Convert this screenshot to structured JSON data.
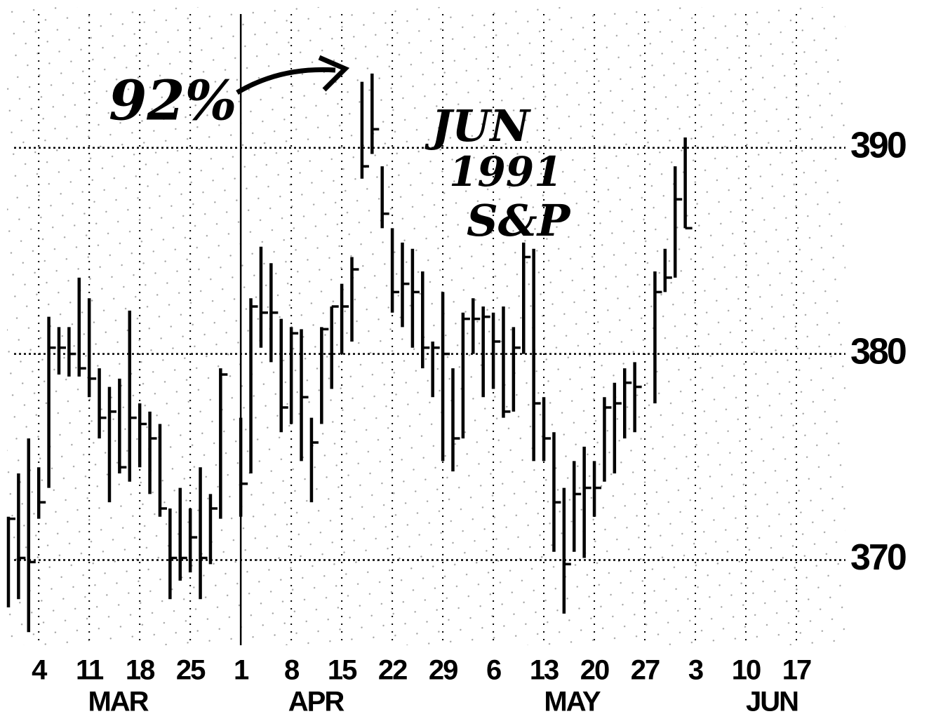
{
  "chart_data": {
    "type": "ohlc",
    "color": "#000000",
    "annotations": [
      "92%",
      "JUN",
      "1991",
      "S&P"
    ],
    "month_labels": [
      "MAR",
      "APR",
      "MAY",
      "JUN"
    ],
    "x": [
      "1991-02-27",
      "1991-02-28",
      "1991-03-01",
      "1991-03-04",
      "1991-03-05",
      "1991-03-06",
      "1991-03-07",
      "1991-03-08",
      "1991-03-11",
      "1991-03-12",
      "1991-03-13",
      "1991-03-14",
      "1991-03-15",
      "1991-03-18",
      "1991-03-19",
      "1991-03-20",
      "1991-03-21",
      "1991-03-22",
      "1991-03-25",
      "1991-03-26",
      "1991-03-27",
      "1991-03-28",
      "1991-04-01",
      "1991-04-02",
      "1991-04-03",
      "1991-04-04",
      "1991-04-05",
      "1991-04-08",
      "1991-04-09",
      "1991-04-10",
      "1991-04-11",
      "1991-04-12",
      "1991-04-15",
      "1991-04-16",
      "1991-04-17",
      "1991-04-18",
      "1991-04-19",
      "1991-04-22",
      "1991-04-23",
      "1991-04-24",
      "1991-04-25",
      "1991-04-26",
      "1991-04-29",
      "1991-04-30",
      "1991-05-01",
      "1991-05-02",
      "1991-05-03",
      "1991-05-06",
      "1991-05-07",
      "1991-05-08",
      "1991-05-09",
      "1991-05-10",
      "1991-05-13",
      "1991-05-14",
      "1991-05-15",
      "1991-05-16",
      "1991-05-17",
      "1991-05-20",
      "1991-05-21",
      "1991-05-22",
      "1991-05-23",
      "1991-05-24",
      "1991-05-28",
      "1991-05-29",
      "1991-05-30",
      "1991-05-31"
    ],
    "high": [
      372.1,
      374.2,
      375.9,
      374.5,
      381.8,
      381.3,
      381.3,
      383.7,
      382.7,
      379.3,
      378.4,
      378.8,
      382.1,
      377.6,
      377.2,
      376.6,
      372.5,
      373.5,
      372.5,
      374.5,
      373.2,
      379.3,
      376.9,
      382.7,
      385.2,
      384.4,
      381.7,
      381.3,
      381.2,
      376.9,
      381.3,
      382.3,
      383.4,
      384.7,
      393.2,
      393.6,
      389.1,
      386.1,
      385.4,
      385.1,
      384.0,
      380.6,
      383.0,
      379.3,
      382.0,
      382.7,
      382.3,
      382.0,
      382.3,
      381.3,
      385.4,
      385.1,
      377.9,
      376.2,
      373.5,
      374.8,
      375.5,
      374.8,
      377.9,
      378.6,
      379.3,
      379.6,
      384.0,
      385.1,
      389.1,
      390.5
    ],
    "low": [
      367.7,
      368.1,
      366.5,
      372.0,
      373.5,
      379.0,
      378.9,
      378.9,
      377.9,
      375.9,
      372.8,
      374.2,
      373.8,
      374.5,
      373.2,
      372.1,
      368.1,
      369.0,
      369.4,
      368.1,
      369.8,
      372.0,
      372.1,
      374.2,
      380.3,
      379.6,
      376.2,
      376.6,
      374.8,
      372.8,
      376.6,
      378.3,
      380.0,
      380.6,
      388.5,
      389.7,
      386.1,
      382.0,
      381.3,
      380.3,
      379.3,
      377.9,
      374.8,
      374.3,
      375.9,
      380.0,
      377.9,
      378.3,
      376.9,
      377.2,
      380.0,
      374.8,
      374.8,
      370.4,
      367.4,
      370.4,
      370.1,
      372.1,
      373.8,
      374.2,
      375.9,
      376.2,
      377.6,
      383.0,
      383.7,
      386.1
    ],
    "close": [
      372.0,
      370.1,
      369.9,
      372.8,
      380.3,
      380.3,
      380.0,
      379.3,
      378.8,
      376.9,
      377.2,
      374.5,
      376.9,
      376.6,
      375.9,
      372.5,
      370.1,
      370.1,
      371.1,
      370.1,
      372.5,
      379.0,
      373.7,
      382.3,
      382.0,
      382.0,
      377.4,
      381.0,
      377.9,
      375.7,
      381.2,
      382.3,
      382.3,
      384.1,
      389.1,
      390.9,
      386.8,
      383.0,
      383.4,
      383.0,
      380.3,
      380.3,
      380.0,
      375.9,
      381.7,
      381.7,
      381.8,
      380.6,
      377.2,
      380.3,
      384.7,
      377.6,
      375.9,
      372.8,
      369.8,
      373.2,
      373.5,
      373.5,
      377.4,
      377.6,
      378.6,
      378.4,
      383.0,
      383.7,
      387.5,
      386.1
    ],
    "xlim": [
      "1991-02-27",
      "1991-06-17"
    ],
    "xticks": [
      {
        "value": "1991-03-04",
        "label": "4"
      },
      {
        "value": "1991-03-11",
        "label": "11"
      },
      {
        "value": "1991-03-18",
        "label": "18"
      },
      {
        "value": "1991-03-25",
        "label": "25"
      },
      {
        "value": "1991-04-01",
        "label": "1"
      },
      {
        "value": "1991-04-08",
        "label": "8"
      },
      {
        "value": "1991-04-15",
        "label": "15"
      },
      {
        "value": "1991-04-22",
        "label": "22"
      },
      {
        "value": "1991-04-29",
        "label": "29"
      },
      {
        "value": "1991-05-06",
        "label": "6"
      },
      {
        "value": "1991-05-13",
        "label": "13"
      },
      {
        "value": "1991-05-20",
        "label": "20"
      },
      {
        "value": "1991-05-27",
        "label": "27"
      },
      {
        "value": "1991-06-03",
        "label": "3"
      },
      {
        "value": "1991-06-10",
        "label": "10"
      },
      {
        "value": "1991-06-17",
        "label": "17"
      }
    ],
    "ylim": [
      366,
      397
    ],
    "yticks": [
      370,
      380,
      390
    ],
    "grid": true
  }
}
